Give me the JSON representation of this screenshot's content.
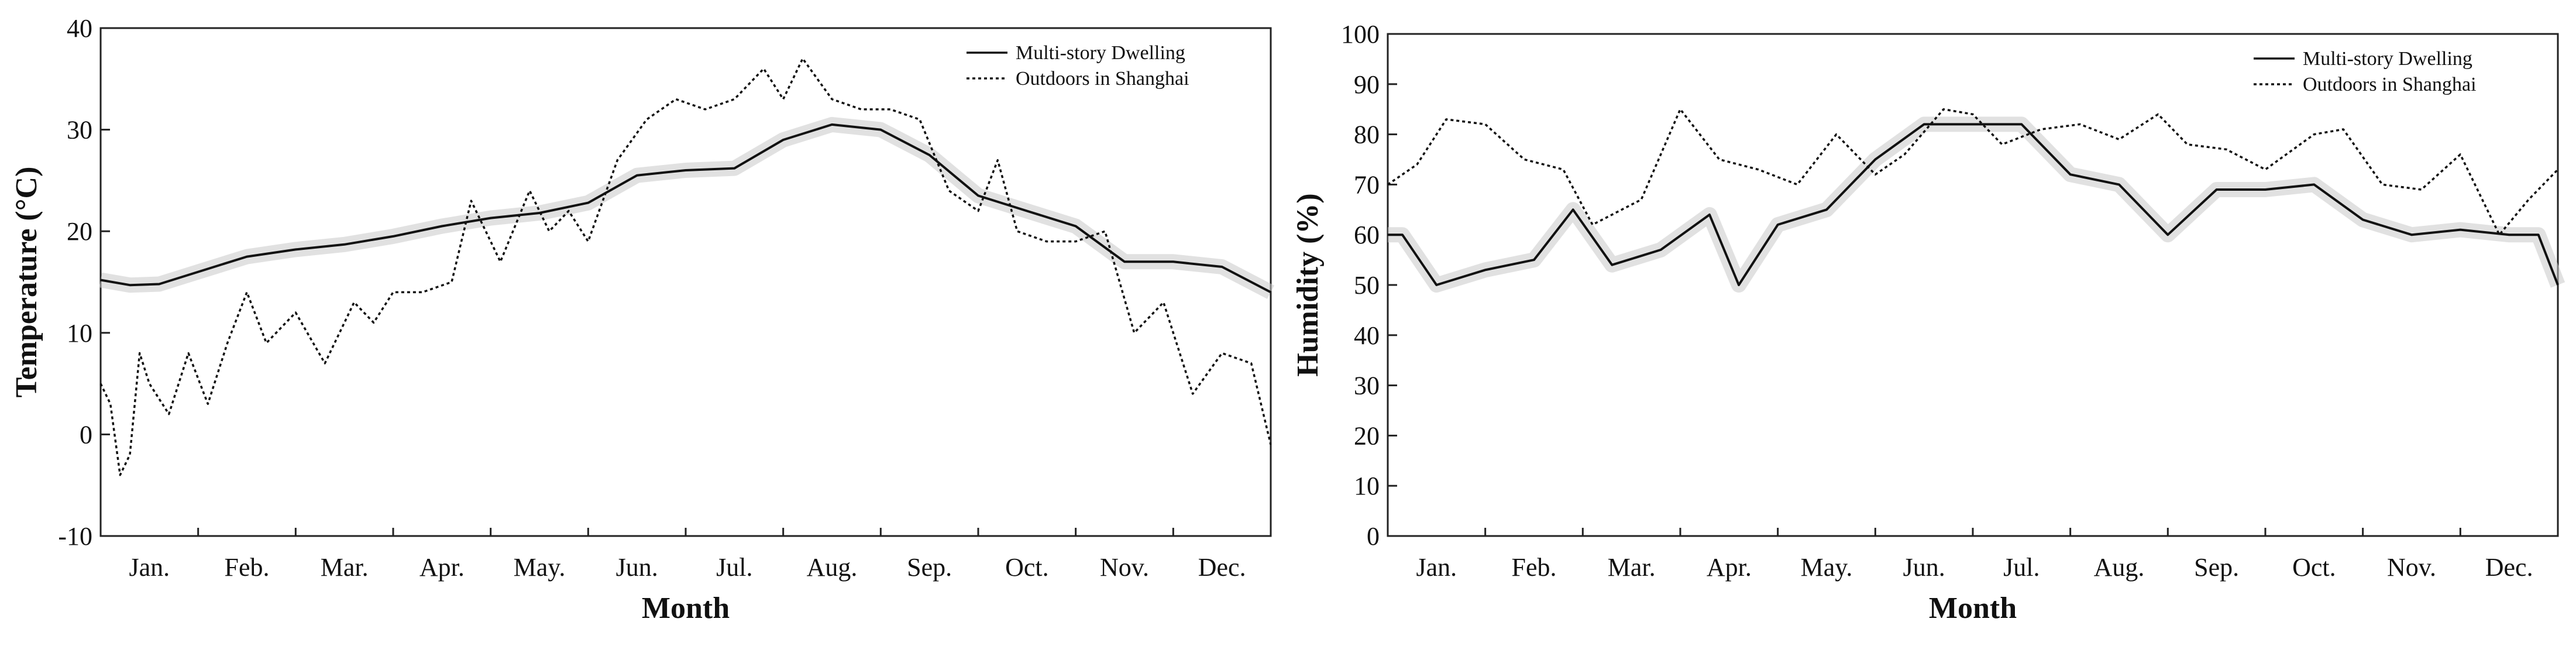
{
  "chart_data": [
    {
      "type": "line",
      "xlabel": "Month",
      "ylabel": "Temperature (°C)",
      "ylim": [
        -10,
        40
      ],
      "yticks": [
        -10,
        0,
        10,
        20,
        30,
        40
      ],
      "categories": [
        "Jan.",
        "Feb.",
        "Mar.",
        "Apr.",
        "May.",
        "Jun.",
        "Jul.",
        "Aug.",
        "Sep.",
        "Oct.",
        "Nov.",
        "Dec."
      ],
      "legend_position": "top-right",
      "series": [
        {
          "name": "Multi-story Dwelling",
          "style": "solid",
          "x": [
            0,
            0.3,
            0.6,
            1.0,
            1.5,
            2.0,
            2.5,
            3.0,
            3.5,
            4.0,
            4.5,
            5.0,
            5.5,
            6.0,
            6.5,
            7.0,
            7.5,
            8.0,
            8.5,
            9.0,
            9.5,
            10.0,
            10.5,
            11.0,
            11.5,
            12.0
          ],
          "values": [
            15.2,
            14.7,
            14.8,
            16.0,
            17.5,
            18.2,
            18.7,
            19.5,
            20.5,
            21.3,
            21.8,
            22.8,
            25.5,
            26.0,
            26.2,
            29.0,
            30.5,
            30.0,
            27.5,
            23.5,
            22.0,
            20.5,
            17.0,
            17.0,
            16.5,
            14.0
          ]
        },
        {
          "name": "Outdoors in Shanghai",
          "style": "dotted",
          "x": [
            0,
            0.1,
            0.2,
            0.3,
            0.4,
            0.5,
            0.7,
            0.9,
            1.1,
            1.3,
            1.5,
            1.7,
            2.0,
            2.3,
            2.6,
            2.8,
            3.0,
            3.3,
            3.6,
            3.8,
            4.1,
            4.4,
            4.6,
            4.8,
            5.0,
            5.3,
            5.6,
            5.9,
            6.2,
            6.5,
            6.8,
            7.0,
            7.2,
            7.5,
            7.8,
            8.1,
            8.4,
            8.7,
            9.0,
            9.2,
            9.4,
            9.7,
            10.0,
            10.3,
            10.6,
            10.9,
            11.2,
            11.5,
            11.8,
            12.0
          ],
          "values": [
            5,
            3,
            -4,
            -2,
            8,
            5,
            2,
            8,
            3,
            9,
            14,
            9,
            12,
            7,
            13,
            11,
            14,
            14,
            15,
            23,
            17,
            24,
            20,
            22,
            19,
            27,
            31,
            33,
            32,
            33,
            36,
            33,
            37,
            33,
            32,
            32,
            31,
            24,
            22,
            27,
            20,
            19,
            19,
            20,
            10,
            13,
            4,
            8,
            7,
            -1
          ]
        }
      ]
    },
    {
      "type": "line",
      "xlabel": "Month",
      "ylabel": "Humidity (%)",
      "ylim": [
        0,
        100
      ],
      "yticks": [
        0,
        10,
        20,
        30,
        40,
        50,
        60,
        70,
        80,
        90,
        100
      ],
      "categories": [
        "Jan.",
        "Feb.",
        "Mar.",
        "Apr.",
        "May.",
        "Jun.",
        "Jul.",
        "Aug.",
        "Sep.",
        "Oct.",
        "Nov.",
        "Dec."
      ],
      "legend_position": "top-right",
      "series": [
        {
          "name": "Multi-story Dwelling",
          "style": "solid",
          "x": [
            0,
            0.15,
            0.5,
            1.0,
            1.5,
            1.9,
            2.3,
            2.8,
            3.3,
            3.6,
            4.0,
            4.5,
            5.0,
            5.5,
            6.0,
            6.5,
            7.0,
            7.5,
            8.0,
            8.5,
            9.0,
            9.5,
            10.0,
            10.5,
            11.0,
            11.5,
            11.8,
            12.0
          ],
          "values": [
            60,
            60,
            50,
            53,
            55,
            65,
            54,
            57,
            64,
            50,
            62,
            65,
            75,
            82,
            82,
            82,
            72,
            70,
            60,
            69,
            69,
            70,
            63,
            60,
            61,
            60,
            60,
            50
          ]
        },
        {
          "name": "Outdoors in Shanghai",
          "style": "dotted",
          "x": [
            0,
            0.3,
            0.6,
            1.0,
            1.4,
            1.8,
            2.1,
            2.6,
            3.0,
            3.4,
            3.8,
            4.2,
            4.6,
            5.0,
            5.3,
            5.7,
            6.0,
            6.3,
            6.7,
            7.1,
            7.5,
            7.9,
            8.2,
            8.6,
            9.0,
            9.5,
            9.8,
            10.2,
            10.6,
            11.0,
            11.4,
            11.7,
            12.0
          ],
          "values": [
            70,
            74,
            83,
            82,
            75,
            73,
            62,
            67,
            85,
            75,
            73,
            70,
            80,
            72,
            76,
            85,
            84,
            78,
            81,
            82,
            79,
            84,
            78,
            77,
            73,
            80,
            81,
            70,
            69,
            76,
            60,
            67,
            73
          ]
        }
      ]
    }
  ]
}
